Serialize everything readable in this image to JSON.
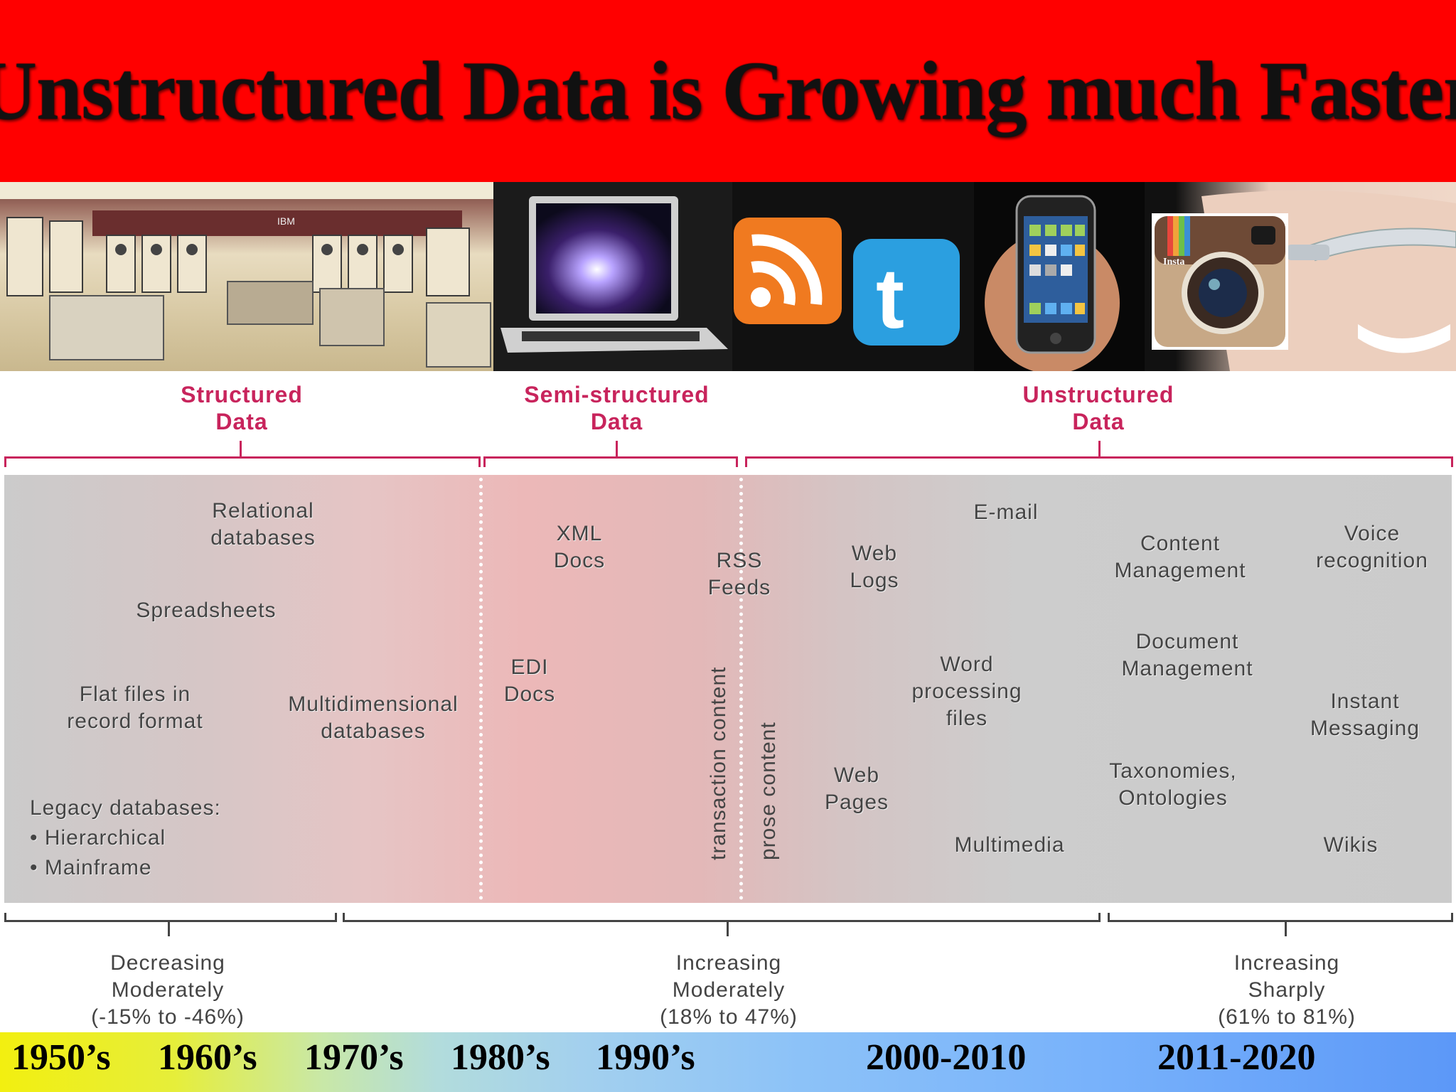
{
  "title": "Unstructured Data is Growing much Faster",
  "images": [
    {
      "name": "mainframe-room-photo",
      "label": "IBM"
    },
    {
      "name": "laptop-photo"
    },
    {
      "name": "rss-icon"
    },
    {
      "name": "twitter-icon"
    },
    {
      "name": "smartphone-photo"
    },
    {
      "name": "instagram-icon",
      "label": "Insta"
    },
    {
      "name": "google-glass-photo"
    }
  ],
  "colors": {
    "banner": "#ff0000",
    "category": "#c8245c",
    "text": "#444444"
  },
  "categories": {
    "structured": "Structured\nData",
    "semi": "Semi-structured\nData",
    "unstructured": "Unstructured\nData"
  },
  "items": {
    "relational": "Relational\ndatabases",
    "spreadsheets": "Spreadsheets",
    "flat_files": "Flat files in\nrecord format",
    "multidim": "Multidimensional\ndatabases",
    "legacy": "Legacy databases:\n• Hierarchical\n• Mainframe",
    "xml": "XML\nDocs",
    "edi": "EDI\nDocs",
    "rss": "RSS\nFeeds",
    "transaction": "transaction content",
    "prose": "prose content",
    "web_logs": "Web\nLogs",
    "email": "E-mail",
    "word": "Word\nprocessing\nfiles",
    "web_pages": "Web\nPages",
    "multimedia": "Multimedia",
    "content_mgmt": "Content\nManagement",
    "document_mgmt": "Document\nManagement",
    "taxonomies": "Taxonomies,\nOntologies",
    "voice": "Voice\nrecognition",
    "instant": "Instant\nMessaging",
    "wikis": "Wikis"
  },
  "trends": {
    "decreasing": "Decreasing\nModerately\n(-15% to -46%)",
    "increasing_mod": "Increasing\nModerately\n(18% to 47%)",
    "increasing_sharp": "Increasing\nSharply\n(61% to 81%)"
  },
  "decades": [
    "1950’s",
    "1960’s",
    "1970’s",
    "1980’s",
    "1990’s",
    "2000-2010",
    "2011-2020"
  ]
}
